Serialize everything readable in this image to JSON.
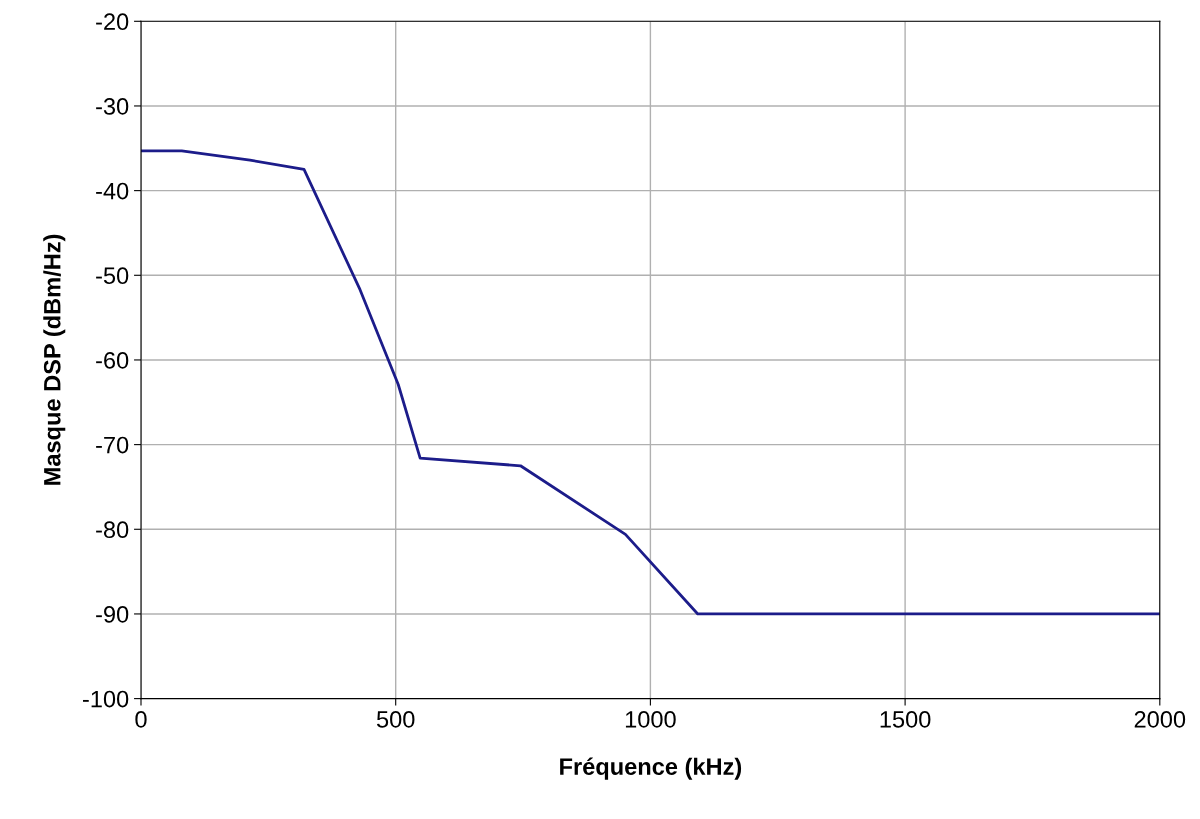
{
  "chart_data": {
    "type": "line",
    "xlabel": "Fréquence (kHz)",
    "ylabel": "Masque DSP (dBm/Hz)",
    "x": [
      0,
      80,
      214,
      320,
      430,
      505,
      548,
      745,
      951,
      1093,
      2000
    ],
    "series": [
      {
        "color": "#1c1c8a",
        "values": [
          -35.3,
          -35.3,
          -36.4,
          -37.5,
          -51.7,
          -62.9,
          -71.6,
          -72.5,
          -80.6,
          -90,
          -90
        ]
      }
    ],
    "xlim": [
      0,
      2000
    ],
    "xticks": [
      0,
      500,
      1000,
      1500,
      2000
    ],
    "ylim": [
      -100,
      -20
    ],
    "yticks": [
      -100,
      -90,
      -80,
      -70,
      -60,
      -50,
      -40,
      -30,
      -20
    ],
    "grid": true,
    "legend": false,
    "marker": "none",
    "line_style": "solid"
  }
}
